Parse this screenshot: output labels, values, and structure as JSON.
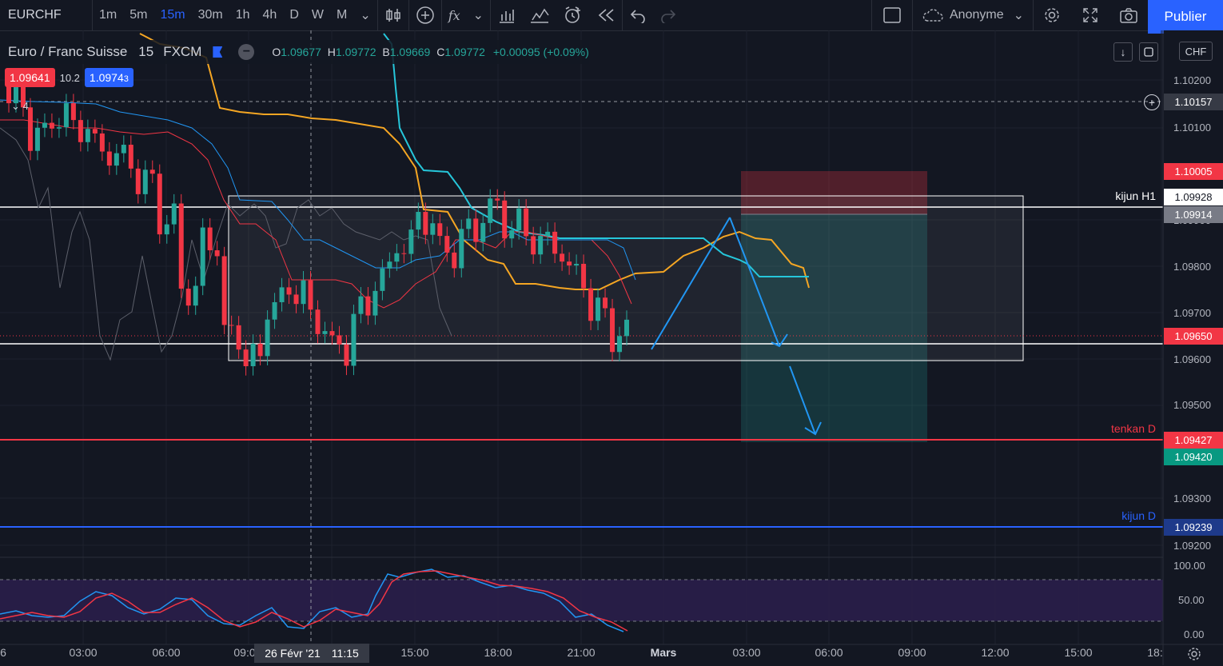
{
  "toolbar": {
    "symbol": "EURCHF",
    "intervals": [
      "1m",
      "5m",
      "15m",
      "30m",
      "1h",
      "4h",
      "D",
      "W",
      "M"
    ],
    "active_interval": "15m",
    "fx_label": "fx",
    "account": "Anonyme",
    "publish_label": "Publier"
  },
  "legend": {
    "title": "Euro / Franc Suisse",
    "interval": "15",
    "exchange": "FXCM",
    "o_label": "O",
    "o": "1.09677",
    "h_label": "H",
    "h": "1.09772",
    "b_label": "B",
    "b": "1.09669",
    "c_label": "C",
    "c": "1.09772",
    "change": "+0.00095 (+0.09%)",
    "collapse_count": "4"
  },
  "quote": {
    "bid": "1.09641",
    "spread": "10.2",
    "ask_main": "1.0974",
    "ask_small": "3"
  },
  "currency": "CHF",
  "price_axis": {
    "ticks": [
      "1.10200",
      "1.10100",
      "1.09900",
      "1.09800",
      "1.09700",
      "1.09600",
      "1.09500",
      "1.09300",
      "1.09200"
    ],
    "osc_ticks": [
      "100.00",
      "50.00",
      "0.00"
    ],
    "labels": {
      "crosshair": "1.10157",
      "tp_top": "1.10005",
      "kijun_h1": "1.09928",
      "entry": "1.09914",
      "current": "1.09650",
      "tenkan_d": "1.09427",
      "target": "1.09420",
      "kijun_d": "1.09239"
    }
  },
  "line_labels": {
    "kijun_h1": "kijun H1",
    "tenkan_d": "tenkan D",
    "kijun_d": "kijun D"
  },
  "time_axis": {
    "ticks": [
      "6",
      "03:00",
      "06:00",
      "09:0",
      "11:15",
      "15:00",
      "18:00",
      "21:00",
      "Mars",
      "03:00",
      "06:00",
      "09:00",
      "12:00",
      "15:00",
      "18:"
    ],
    "crosshair_date": "26 Févr '21"
  },
  "colors": {
    "bg": "#131722",
    "up": "#26a69a",
    "down": "#f23645",
    "accent": "#2962ff",
    "orange": "#f5a623",
    "cyan": "#26c6da",
    "blue_arrow": "#2196f3"
  },
  "chart_data": {
    "type": "candlestick",
    "symbol": "EURCHF",
    "interval": "15",
    "y_range": [
      1.0915,
      1.1025
    ],
    "horizontal_lines": [
      {
        "name": "kijun H1",
        "value": 1.09928
      },
      {
        "name": "tenkan D",
        "value": 1.09427
      },
      {
        "name": "kijun D",
        "value": 1.09239
      }
    ],
    "closes_sample": [
      1.1015,
      1.1008,
      1.1012,
      1.101,
      1.1005,
      1.1003,
      1.0998,
      1.099,
      1.0975,
      1.0985,
      1.0965,
      1.096,
      1.0972,
      1.0975,
      1.0968,
      1.0962,
      1.097,
      1.0978,
      1.0985,
      1.099,
      1.0983,
      1.0987,
      1.0992,
      1.0989,
      1.0986,
      1.0984,
      1.0978,
      1.097,
      1.0965
    ],
    "oscillator": {
      "range": [
        0,
        100
      ],
      "levels": [
        80,
        20
      ]
    }
  }
}
